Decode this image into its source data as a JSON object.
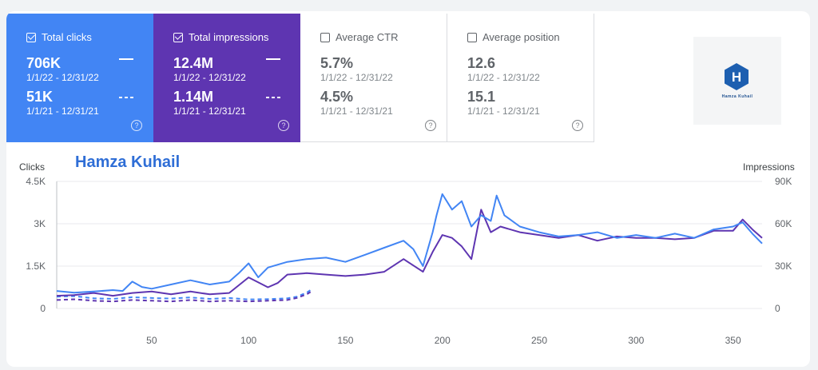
{
  "cards": [
    {
      "label": "Total clicks",
      "checked": true,
      "value1": "706K",
      "range1": "1/1/22 - 12/31/22",
      "value2": "51K",
      "range2": "1/1/21 - 12/31/21"
    },
    {
      "label": "Total impressions",
      "checked": true,
      "value1": "12.4M",
      "range1": "1/1/22 - 12/31/22",
      "value2": "1.14M",
      "range2": "1/1/21 - 12/31/21"
    },
    {
      "label": "Average CTR",
      "checked": false,
      "value1": "5.7%",
      "range1": "1/1/22 - 12/31/22",
      "value2": "4.5%",
      "range2": "1/1/21 - 12/31/21"
    },
    {
      "label": "Average position",
      "checked": false,
      "value1": "12.6",
      "range1": "1/1/22 - 12/31/22",
      "value2": "15.1",
      "range2": "1/1/21 - 12/31/21"
    }
  ],
  "help_glyph": "?",
  "logo": {
    "text": "Hamza Kuhail",
    "glyph": "H"
  },
  "watermark": "Hamza Kuhail",
  "colors": {
    "clicks": "#4285f4",
    "impressions": "#5e35b1",
    "grid": "#e8eaed",
    "axis_text": "#5f6368"
  },
  "chart_data": {
    "type": "line",
    "left_axis_title": "Clicks",
    "right_axis_title": "Impressions",
    "left_ticks": [
      "0",
      "1.5K",
      "3K",
      "4.5K"
    ],
    "left_tick_values": [
      0,
      1500,
      3000,
      4500
    ],
    "right_ticks": [
      "0",
      "30K",
      "60K",
      "90K"
    ],
    "right_tick_values": [
      0,
      30000,
      60000,
      90000
    ],
    "x_ticks": [
      "50",
      "100",
      "150",
      "200",
      "250",
      "300",
      "350"
    ],
    "x_tick_values": [
      50,
      100,
      150,
      200,
      250,
      300,
      350
    ],
    "xlim": [
      1,
      365
    ],
    "ylim_left": [
      0,
      4500
    ],
    "ylim_right": [
      0,
      90000
    ],
    "series": [
      {
        "axis": "left",
        "style": "solid",
        "color": "#4285f4",
        "x": [
          1,
          10,
          20,
          30,
          35,
          40,
          45,
          50,
          60,
          70,
          80,
          90,
          95,
          100,
          105,
          110,
          120,
          130,
          140,
          150,
          160,
          170,
          180,
          185,
          190,
          195,
          197,
          200,
          205,
          210,
          215,
          220,
          225,
          228,
          232,
          240,
          250,
          260,
          270,
          280,
          290,
          300,
          310,
          320,
          330,
          340,
          350,
          355,
          360,
          365
        ],
        "values": [
          620,
          560,
          600,
          650,
          620,
          950,
          760,
          700,
          850,
          1000,
          850,
          950,
          1250,
          1600,
          1100,
          1450,
          1650,
          1750,
          1800,
          1650,
          1900,
          2150,
          2400,
          2100,
          1500,
          2700,
          3300,
          4050,
          3500,
          3800,
          2900,
          3300,
          3100,
          4000,
          3300,
          2900,
          2700,
          2550,
          2600,
          2700,
          2500,
          2600,
          2500,
          2650,
          2500,
          2800,
          2900,
          3050,
          2650,
          2300
        ]
      },
      {
        "axis": "right",
        "style": "solid",
        "color": "#5e35b1",
        "x": [
          1,
          10,
          20,
          30,
          40,
          50,
          60,
          70,
          80,
          90,
          100,
          110,
          115,
          120,
          130,
          140,
          150,
          160,
          170,
          180,
          190,
          195,
          200,
          205,
          210,
          215,
          220,
          225,
          230,
          240,
          250,
          260,
          270,
          280,
          290,
          300,
          310,
          320,
          330,
          340,
          350,
          355,
          360,
          365
        ],
        "values": [
          9000,
          9500,
          11000,
          9000,
          11000,
          12000,
          10000,
          12000,
          10000,
          11000,
          22000,
          15000,
          18000,
          24000,
          25000,
          24000,
          23000,
          24000,
          26000,
          35000,
          26000,
          40000,
          52000,
          50000,
          44000,
          35000,
          70000,
          54000,
          58000,
          54000,
          52000,
          50000,
          52000,
          48000,
          51000,
          50000,
          50000,
          49000,
          50000,
          55000,
          55000,
          63000,
          56000,
          50000
        ]
      },
      {
        "axis": "left",
        "style": "dashed",
        "color": "#4285f4",
        "x": [
          1,
          10,
          20,
          30,
          40,
          50,
          60,
          70,
          80,
          90,
          100,
          110,
          120,
          125,
          130,
          133
        ],
        "values": [
          420,
          440,
          360,
          340,
          400,
          370,
          350,
          390,
          340,
          370,
          320,
          330,
          360,
          420,
          560,
          700
        ]
      },
      {
        "axis": "right",
        "style": "dashed",
        "color": "#5e35b1",
        "x": [
          1,
          10,
          20,
          30,
          40,
          50,
          60,
          70,
          80,
          90,
          100,
          110,
          120,
          125,
          130,
          133
        ],
        "values": [
          6000,
          6500,
          5500,
          5000,
          6000,
          5500,
          5000,
          6000,
          5000,
          5500,
          5000,
          5500,
          6000,
          7500,
          10000,
          12500
        ]
      }
    ]
  }
}
